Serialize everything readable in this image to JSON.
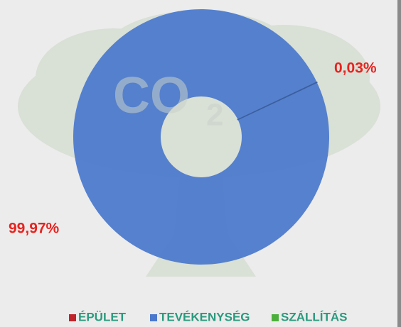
{
  "chart_data": {
    "type": "donut",
    "watermark": {
      "main": "CO",
      "sub": "2"
    },
    "categories": [
      "ÉPÜLET",
      "TEVÉKENYSÉG",
      "SZÁLLÍTÁS"
    ],
    "values": [
      0,
      99.97,
      0.03
    ],
    "value_labels": [
      null,
      "99,97%",
      "0,03%"
    ],
    "colors": [
      "#c0242a",
      "#4a78cc",
      "#4caf3c"
    ],
    "legend": "bottom"
  }
}
